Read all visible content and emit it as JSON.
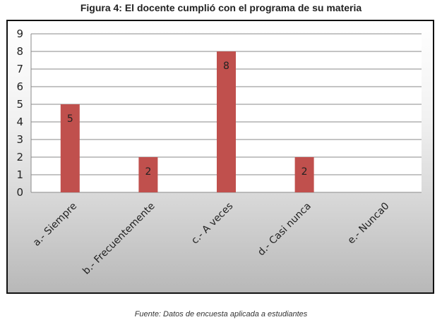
{
  "chart_data": {
    "type": "bar",
    "title": "Figura 4: El docente cumplió con el programa de su materia",
    "categories": [
      "a.- Siempre",
      "b.- Frecuentemente",
      "c.- A veces",
      "d.- Casi nunca",
      "e.- Nunca0"
    ],
    "values": [
      5,
      2,
      8,
      2,
      0
    ],
    "data_labels": [
      "5",
      "2",
      "8",
      "2",
      ""
    ],
    "ylim": [
      0,
      9
    ],
    "yticks": [
      "0",
      "1",
      "2",
      "3",
      "4",
      "5",
      "6",
      "7",
      "8",
      "9"
    ],
    "bar_color": "#c0504d",
    "grid": true
  },
  "source": "Fuente: Datos de encuesta aplicada a estudiantes"
}
